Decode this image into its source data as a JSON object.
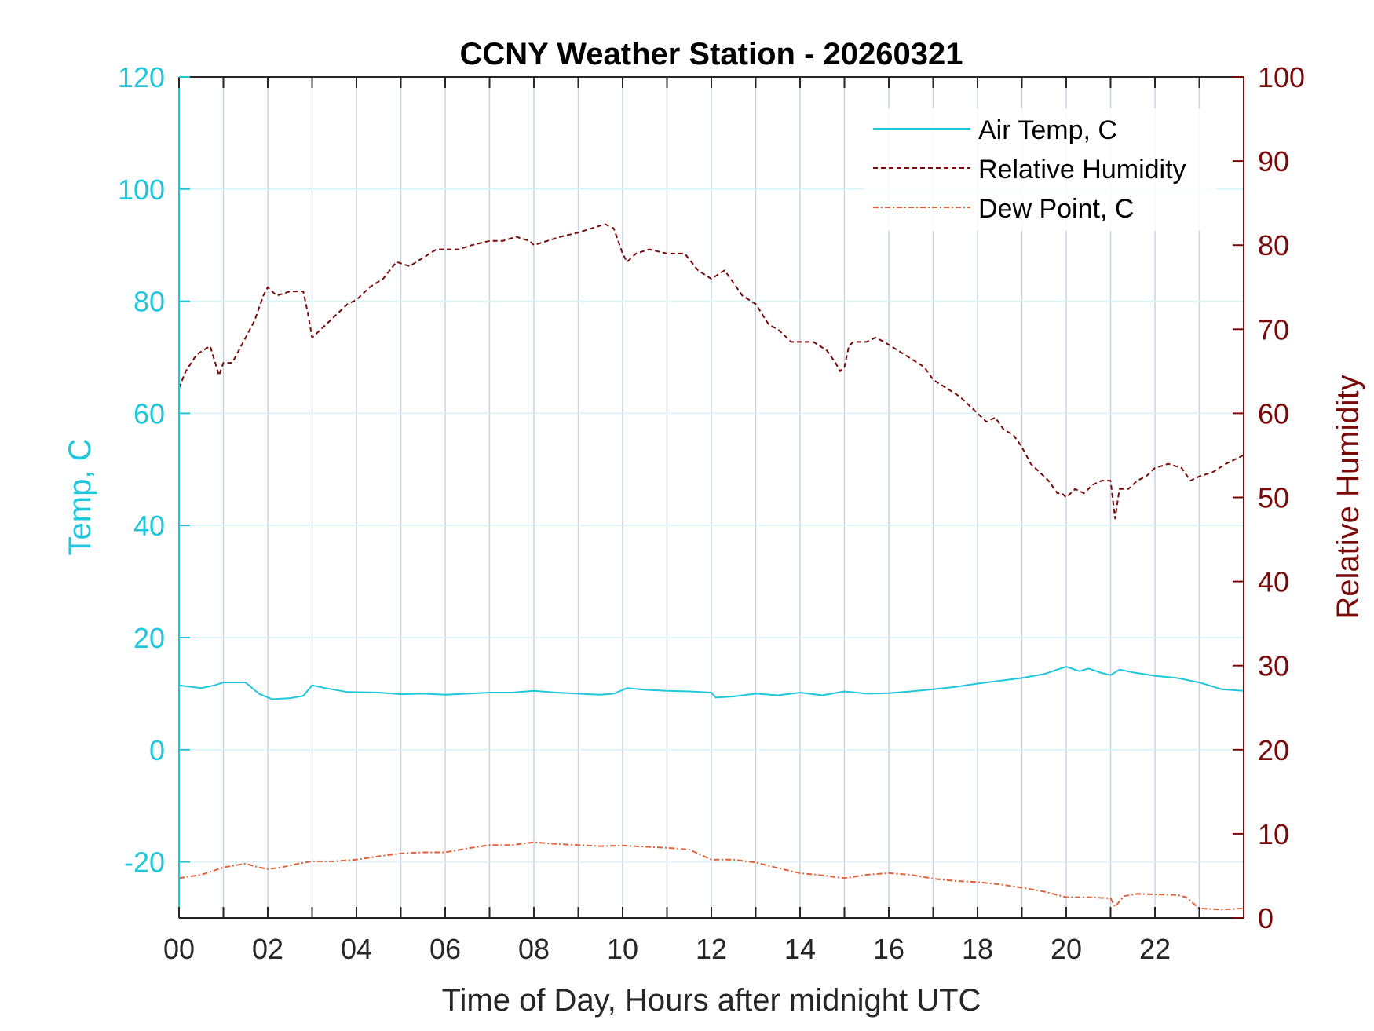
{
  "chart_data": {
    "type": "line",
    "title": "CCNY Weather Station - 20260321",
    "xlabel": "Time of Day, Hours after midnight UTC",
    "ylabel_left": "Temp, C",
    "ylabel_right": "Relative Humidity",
    "xlim": [
      0,
      24
    ],
    "ylim_left": [
      -30,
      120
    ],
    "ylim_right": [
      0,
      100
    ],
    "x_ticks": [
      0,
      2,
      4,
      6,
      8,
      10,
      12,
      14,
      16,
      18,
      20,
      22
    ],
    "x_tick_labels": [
      "00",
      "02",
      "04",
      "06",
      "08",
      "10",
      "12",
      "14",
      "16",
      "18",
      "20",
      "22"
    ],
    "y_ticks_left": [
      -20,
      0,
      20,
      40,
      60,
      80,
      100,
      120
    ],
    "y_tick_labels_left": [
      "-20",
      "0",
      "20",
      "40",
      "60",
      "80",
      "100",
      "120"
    ],
    "y_ticks_right": [
      0,
      10,
      20,
      30,
      40,
      50,
      60,
      70,
      80,
      90,
      100
    ],
    "y_tick_labels_right": [
      "0",
      "10",
      "20",
      "30",
      "40",
      "50",
      "60",
      "70",
      "80",
      "90",
      "100"
    ],
    "grid": true,
    "legend_position": "top-right",
    "colors": {
      "left_axis": "#1fc6dc",
      "right_axis": "#7a0a0a",
      "air_temp": "#1fc6dc",
      "relative_humidity": "#7a0a0a",
      "dew_point": "#e0623a",
      "grid": "#c9d3dd"
    },
    "series": [
      {
        "name": "Air Temp, C",
        "axis": "left",
        "style": "solid",
        "x": [
          0,
          0.5,
          0.8,
          1.0,
          1.5,
          1.8,
          2.1,
          2.5,
          2.8,
          3.0,
          3.3,
          3.8,
          4.5,
          5.0,
          5.5,
          6.0,
          6.5,
          7.0,
          7.5,
          8.0,
          8.5,
          9.0,
          9.5,
          9.8,
          10.1,
          10.5,
          11.0,
          11.5,
          12.0,
          12.1,
          12.5,
          13.0,
          13.5,
          14.0,
          14.5,
          15.0,
          15.5,
          16.0,
          16.5,
          17.0,
          17.5,
          18.0,
          18.5,
          19.0,
          19.5,
          19.8,
          20.0,
          20.3,
          20.5,
          20.8,
          21.0,
          21.2,
          21.5,
          22.0,
          22.5,
          23.0,
          23.5,
          23.99
        ],
        "values": [
          11.5,
          11.0,
          11.5,
          12.0,
          12.0,
          10.0,
          9.0,
          9.2,
          9.6,
          11.5,
          11.0,
          10.3,
          10.2,
          9.9,
          10.0,
          9.8,
          10.0,
          10.2,
          10.2,
          10.5,
          10.2,
          10.0,
          9.8,
          10.0,
          11.0,
          10.7,
          10.5,
          10.4,
          10.2,
          9.3,
          9.5,
          10.0,
          9.7,
          10.2,
          9.7,
          10.4,
          10.0,
          10.1,
          10.4,
          10.8,
          11.2,
          11.8,
          12.3,
          12.8,
          13.5,
          14.3,
          14.8,
          14.0,
          14.5,
          13.7,
          13.3,
          14.3,
          13.8,
          13.2,
          12.8,
          12.0,
          10.8,
          10.5
        ]
      },
      {
        "name": "Relative Humidity",
        "axis": "right",
        "style": "dashed",
        "x": [
          0,
          0.15,
          0.4,
          0.7,
          0.9,
          1.0,
          1.2,
          1.5,
          1.7,
          1.9,
          2.0,
          2.2,
          2.5,
          2.8,
          2.9,
          3.0,
          3.1,
          3.4,
          3.8,
          4.0,
          4.3,
          4.6,
          4.9,
          5.2,
          5.5,
          5.8,
          6.0,
          6.3,
          6.6,
          7.0,
          7.3,
          7.6,
          7.9,
          8.0,
          8.3,
          8.6,
          9.0,
          9.3,
          9.6,
          9.8,
          10.0,
          10.1,
          10.3,
          10.6,
          11.0,
          11.4,
          11.7,
          12.0,
          12.3,
          12.5,
          12.7,
          13.0,
          13.3,
          13.5,
          13.8,
          14.0,
          14.3,
          14.6,
          14.8,
          14.9,
          15.0,
          15.1,
          15.2,
          15.5,
          15.7,
          15.9,
          16.2,
          16.5,
          16.8,
          17.0,
          17.3,
          17.6,
          17.8,
          18.0,
          18.2,
          18.4,
          18.6,
          18.8,
          19.0,
          19.1,
          19.2,
          19.4,
          19.6,
          19.8,
          19.9,
          20.0,
          20.2,
          20.4,
          20.6,
          20.8,
          21.0,
          21.1,
          21.2,
          21.4,
          21.6,
          21.8,
          22.0,
          22.3,
          22.6,
          22.8,
          23.0,
          23.3,
          23.6,
          23.99
        ],
        "values": [
          63,
          65,
          67,
          68,
          64.5,
          66,
          66,
          69,
          71,
          74,
          75,
          74,
          74.5,
          74.5,
          72,
          69,
          69.5,
          71,
          73,
          73.5,
          75,
          76,
          78,
          77.5,
          78.5,
          79.5,
          79.5,
          79.5,
          80,
          80.5,
          80.5,
          81,
          80.5,
          80,
          80.5,
          81,
          81.5,
          82,
          82.5,
          82,
          79,
          78,
          79,
          79.5,
          79,
          79,
          77,
          76,
          77,
          75.5,
          74,
          73,
          70.5,
          70,
          68.5,
          68.5,
          68.5,
          67.5,
          66,
          65,
          65.5,
          68,
          68.5,
          68.5,
          69,
          68.5,
          67.5,
          66.5,
          65.5,
          64,
          63,
          62,
          61,
          60,
          59,
          59.5,
          58,
          57.5,
          56,
          55,
          54,
          53,
          52,
          50.5,
          50.5,
          50,
          51,
          50.5,
          51.5,
          52,
          52,
          47.5,
          51,
          51,
          52,
          52.5,
          53.5,
          54,
          53.5,
          52,
          52.5,
          53,
          54,
          55
        ]
      },
      {
        "name": "Dew Point, C",
        "axis": "left",
        "style": "dash-dot",
        "x": [
          0,
          0.5,
          1.0,
          1.5,
          1.7,
          2.0,
          2.3,
          2.7,
          3.0,
          3.5,
          4.0,
          4.5,
          5.0,
          5.5,
          6.0,
          6.5,
          7.0,
          7.5,
          8.0,
          8.5,
          9.0,
          9.5,
          10.0,
          10.5,
          11.0,
          11.5,
          12.0,
          12.5,
          13.0,
          13.5,
          14.0,
          14.5,
          15.0,
          15.5,
          16.0,
          16.5,
          17.0,
          17.5,
          18.0,
          18.5,
          19.0,
          19.5,
          20.0,
          20.5,
          21.0,
          21.1,
          21.3,
          21.6,
          22.0,
          22.5,
          22.7,
          23.0,
          23.5,
          23.99
        ],
        "values": [
          -22.9,
          -22.3,
          -21.0,
          -20.3,
          -20.8,
          -21.3,
          -21.0,
          -20.3,
          -19.9,
          -19.9,
          -19.6,
          -19.0,
          -18.5,
          -18.3,
          -18.3,
          -17.6,
          -17.0,
          -17.0,
          -16.5,
          -16.8,
          -17.0,
          -17.2,
          -17.1,
          -17.3,
          -17.5,
          -17.8,
          -19.6,
          -19.6,
          -20.1,
          -21.1,
          -22.0,
          -22.4,
          -22.9,
          -22.3,
          -22.0,
          -22.3,
          -23.0,
          -23.4,
          -23.6,
          -24.0,
          -24.6,
          -25.3,
          -26.3,
          -26.3,
          -26.5,
          -28.0,
          -26.1,
          -25.7,
          -25.8,
          -25.9,
          -26.3,
          -28.3,
          -28.5,
          -28.3
        ]
      }
    ]
  }
}
